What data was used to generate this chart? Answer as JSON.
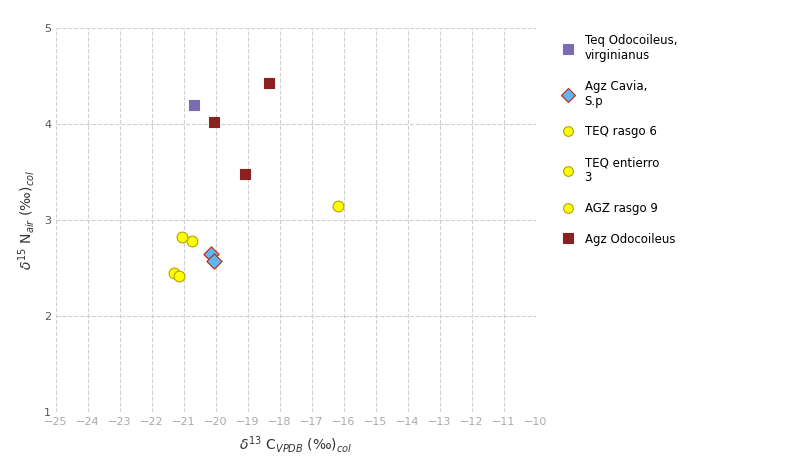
{
  "xlim": [
    -25,
    -10
  ],
  "ylim": [
    1,
    5
  ],
  "xticks": [
    -25,
    -24,
    -23,
    -22,
    -21,
    -20,
    -19,
    -18,
    -17,
    -16,
    -15,
    -14,
    -13,
    -12,
    -11,
    -10
  ],
  "yticks": [
    1,
    2,
    3,
    4,
    5
  ],
  "series": [
    {
      "label": "Teq Odocoileus,\nvirginianus",
      "marker": "s",
      "color": "#7b6bb0",
      "edgecolor": "#7b6bb0",
      "size": 60,
      "x": [
        -20.7
      ],
      "y": [
        4.2
      ]
    },
    {
      "label": "Agz Cavia,\nS.p",
      "marker": "D",
      "color": "#5bb8f5",
      "edgecolor": "#cc2200",
      "size": 60,
      "x": [
        -20.15,
        -20.05
      ],
      "y": [
        2.65,
        2.57
      ]
    },
    {
      "label": "TEQ rasgo 6",
      "marker": "o",
      "color": "#ffff00",
      "edgecolor": "#b8a000",
      "size": 60,
      "x": [
        -21.05,
        -20.75
      ],
      "y": [
        2.82,
        2.78
      ]
    },
    {
      "label": "TEQ entierro\n3",
      "marker": "o",
      "color": "#ffff00",
      "edgecolor": "#b8a000",
      "size": 60,
      "x": [
        -16.2
      ],
      "y": [
        3.15
      ]
    },
    {
      "label": "AGZ rasgo 9",
      "marker": "o",
      "color": "#ffff00",
      "edgecolor": "#b8a000",
      "size": 60,
      "x": [
        -21.3,
        -21.15
      ],
      "y": [
        2.45,
        2.42
      ]
    },
    {
      "label": "Agz Odocoileus",
      "marker": "s",
      "color": "#8b2020",
      "edgecolor": "#8b2020",
      "size": 60,
      "x": [
        -20.05,
        -19.1,
        -18.35
      ],
      "y": [
        4.02,
        3.48,
        4.43
      ]
    }
  ],
  "bg_color": "#ffffff",
  "grid_color": "#d0d0d0",
  "axis_label_fontsize": 10,
  "tick_fontsize": 8,
  "legend_fontsize": 8.5
}
